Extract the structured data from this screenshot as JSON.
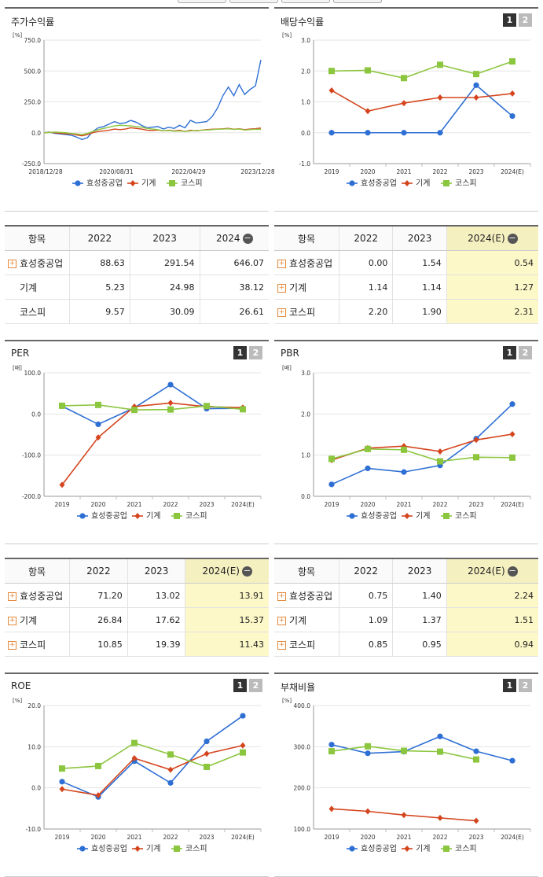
{
  "legend": {
    "series": [
      {
        "name": "효성중공업",
        "color": "#2e6fd4",
        "marker": "circle"
      },
      {
        "name": "기계",
        "color": "#d4451e",
        "marker": "diamond"
      },
      {
        "name": "코스피",
        "color": "#8cc63f",
        "marker": "square"
      }
    ]
  },
  "icons": {
    "expand": "plus-box-icon",
    "collapse": "minus-circle-icon",
    "toggle1": "1",
    "toggle2": "2"
  },
  "panels": {
    "stock_return": {
      "title": "주가수익률"
    },
    "dividend": {
      "title": "배당수익률"
    },
    "per": {
      "title": "PER"
    },
    "pbr": {
      "title": "PBR"
    },
    "roe": {
      "title": "ROE"
    },
    "debt": {
      "title": "부채비율"
    }
  },
  "tables": {
    "stock_return": {
      "header": [
        "항목",
        "2022",
        "2023",
        "2024"
      ],
      "rows": [
        [
          "효성중공업",
          "88.63",
          "291.54",
          "646.07"
        ],
        [
          "기계",
          "5.23",
          "24.98",
          "38.12"
        ],
        [
          "코스피",
          "9.57",
          "30.09",
          "26.61"
        ]
      ]
    },
    "dividend": {
      "header": [
        "항목",
        "2022",
        "2023",
        "2024(E)"
      ],
      "rows": [
        [
          "효성중공업",
          "0.00",
          "1.54",
          "0.54"
        ],
        [
          "기계",
          "1.14",
          "1.14",
          "1.27"
        ],
        [
          "코스피",
          "2.20",
          "1.90",
          "2.31"
        ]
      ]
    },
    "per": {
      "header": [
        "항목",
        "2022",
        "2023",
        "2024(E)"
      ],
      "rows": [
        [
          "효성중공업",
          "71.20",
          "13.02",
          "13.91"
        ],
        [
          "기계",
          "26.84",
          "17.62",
          "15.37"
        ],
        [
          "코스피",
          "10.85",
          "19.39",
          "11.43"
        ]
      ]
    },
    "pbr": {
      "header": [
        "항목",
        "2022",
        "2023",
        "2024(E)"
      ],
      "rows": [
        [
          "효성중공업",
          "0.75",
          "1.40",
          "2.24"
        ],
        [
          "기계",
          "1.09",
          "1.37",
          "1.51"
        ],
        [
          "코스피",
          "0.85",
          "0.95",
          "0.94"
        ]
      ]
    }
  },
  "chart_data": [
    {
      "id": "stock_return",
      "type": "line",
      "title": "주가수익률",
      "unit": "[%]",
      "ylim": [
        -250,
        750
      ],
      "yticks": [
        "750.0",
        "500.0",
        "250.0",
        "0.0",
        "-250.0"
      ],
      "ytick_values": [
        750,
        500,
        250,
        0,
        -250
      ],
      "xlabels": [
        "2018/12/28",
        "2020/08/31",
        "2022/04/29",
        "2023/12/28"
      ],
      "series": [
        {
          "name": "효성중공업",
          "values": [
            0,
            5,
            -5,
            -10,
            -15,
            -20,
            -35,
            -55,
            -40,
            10,
            40,
            50,
            70,
            90,
            75,
            80,
            100,
            85,
            60,
            40,
            45,
            50,
            30,
            45,
            35,
            60,
            40,
            100,
            80,
            85,
            90,
            130,
            200,
            300,
            370,
            300,
            390,
            310,
            350,
            380,
            590
          ]
        },
        {
          "name": "기계",
          "values": [
            0,
            3,
            0,
            -5,
            -8,
            -10,
            -18,
            -25,
            -15,
            0,
            10,
            15,
            20,
            30,
            25,
            30,
            40,
            35,
            30,
            20,
            18,
            22,
            15,
            20,
            15,
            20,
            10,
            20,
            15,
            20,
            25,
            28,
            30,
            32,
            35,
            28,
            32,
            25,
            30,
            33,
            38
          ]
        },
        {
          "name": "코스피",
          "values": [
            0,
            2,
            5,
            3,
            0,
            -5,
            -10,
            -15,
            -5,
            10,
            25,
            35,
            45,
            55,
            60,
            58,
            55,
            50,
            45,
            35,
            30,
            25,
            15,
            18,
            12,
            15,
            10,
            15,
            18,
            20,
            22,
            25,
            28,
            30,
            32,
            27,
            30,
            22,
            25,
            28,
            27
          ]
        }
      ]
    },
    {
      "id": "dividend",
      "type": "line",
      "title": "배당수익률",
      "unit": "[%]",
      "ylim": [
        -1,
        3
      ],
      "yticks": [
        "3.0",
        "2.0",
        "1.0",
        "0.0",
        "-1.0"
      ],
      "ytick_values": [
        3,
        2,
        1,
        0,
        -1
      ],
      "categories": [
        "2019",
        "2020",
        "2021",
        "2022",
        "2023",
        "2024(E)"
      ],
      "series": [
        {
          "name": "효성중공업",
          "values": [
            0.0,
            0.0,
            0.0,
            0.0,
            1.54,
            0.54
          ]
        },
        {
          "name": "기계",
          "values": [
            1.37,
            0.7,
            0.96,
            1.14,
            1.14,
            1.27
          ]
        },
        {
          "name": "코스피",
          "values": [
            2.0,
            2.02,
            1.77,
            2.2,
            1.9,
            2.31
          ]
        }
      ]
    },
    {
      "id": "per",
      "type": "line",
      "title": "PER",
      "unit": "[배]",
      "ylim": [
        -200,
        100
      ],
      "yticks": [
        "100.0",
        "0.0",
        "-100.0",
        "-200.0"
      ],
      "ytick_values": [
        100,
        0,
        -100,
        -200
      ],
      "categories": [
        "2019",
        "2020",
        "2021",
        "2022",
        "2023",
        "2024(E)"
      ],
      "series": [
        {
          "name": "효성중공업",
          "values": [
            19,
            -25,
            15,
            71.2,
            13.02,
            13.91
          ]
        },
        {
          "name": "기계",
          "values": [
            -172,
            -57,
            18,
            26.84,
            17.62,
            15.37
          ]
        },
        {
          "name": "코스피",
          "values": [
            20,
            22,
            10,
            10.85,
            19.39,
            11.43
          ]
        }
      ]
    },
    {
      "id": "pbr",
      "type": "line",
      "title": "PBR",
      "unit": "[배]",
      "ylim": [
        0,
        3
      ],
      "yticks": [
        "3.0",
        "2.0",
        "1.0",
        "0.0"
      ],
      "ytick_values": [
        3,
        2,
        1,
        0
      ],
      "categories": [
        "2019",
        "2020",
        "2021",
        "2022",
        "2023",
        "2024(E)"
      ],
      "series": [
        {
          "name": "효성중공업",
          "values": [
            0.29,
            0.68,
            0.59,
            0.75,
            1.4,
            2.24
          ]
        },
        {
          "name": "기계",
          "values": [
            0.88,
            1.17,
            1.22,
            1.09,
            1.37,
            1.51
          ]
        },
        {
          "name": "코스피",
          "values": [
            0.91,
            1.15,
            1.13,
            0.85,
            0.95,
            0.94
          ]
        }
      ]
    },
    {
      "id": "roe",
      "type": "line",
      "title": "ROE",
      "unit": "[%]",
      "ylim": [
        -10,
        20
      ],
      "yticks": [
        "20.0",
        "10.0",
        "0.0",
        "-10.0"
      ],
      "ytick_values": [
        20,
        10,
        0,
        -10
      ],
      "categories": [
        "2019",
        "2020",
        "2021",
        "2022",
        "2023",
        "2024(E)"
      ],
      "series": [
        {
          "name": "효성중공업",
          "values": [
            1.5,
            -2.2,
            6.5,
            1.2,
            11.3,
            17.5
          ]
        },
        {
          "name": "기계",
          "values": [
            -0.3,
            -1.8,
            7.2,
            4.4,
            8.3,
            10.3
          ]
        },
        {
          "name": "코스피",
          "values": [
            4.7,
            5.3,
            10.9,
            8.1,
            5.1,
            8.6
          ]
        }
      ]
    },
    {
      "id": "debt",
      "type": "line",
      "title": "부채비율",
      "unit": "[%]",
      "ylim": [
        100,
        400
      ],
      "yticks": [
        "400.0",
        "300.0",
        "200.0",
        "100.0"
      ],
      "ytick_values": [
        400,
        300,
        200,
        100
      ],
      "categories": [
        "2019",
        "2020",
        "2021",
        "2022",
        "2023",
        "2024(E)"
      ],
      "series": [
        {
          "name": "효성중공업",
          "values": [
            305,
            284,
            288,
            325,
            289,
            266
          ]
        },
        {
          "name": "기계",
          "values": [
            149,
            143,
            134,
            127,
            120,
            null
          ]
        },
        {
          "name": "코스피",
          "values": [
            289,
            301,
            290,
            288,
            269,
            null
          ]
        }
      ]
    }
  ]
}
